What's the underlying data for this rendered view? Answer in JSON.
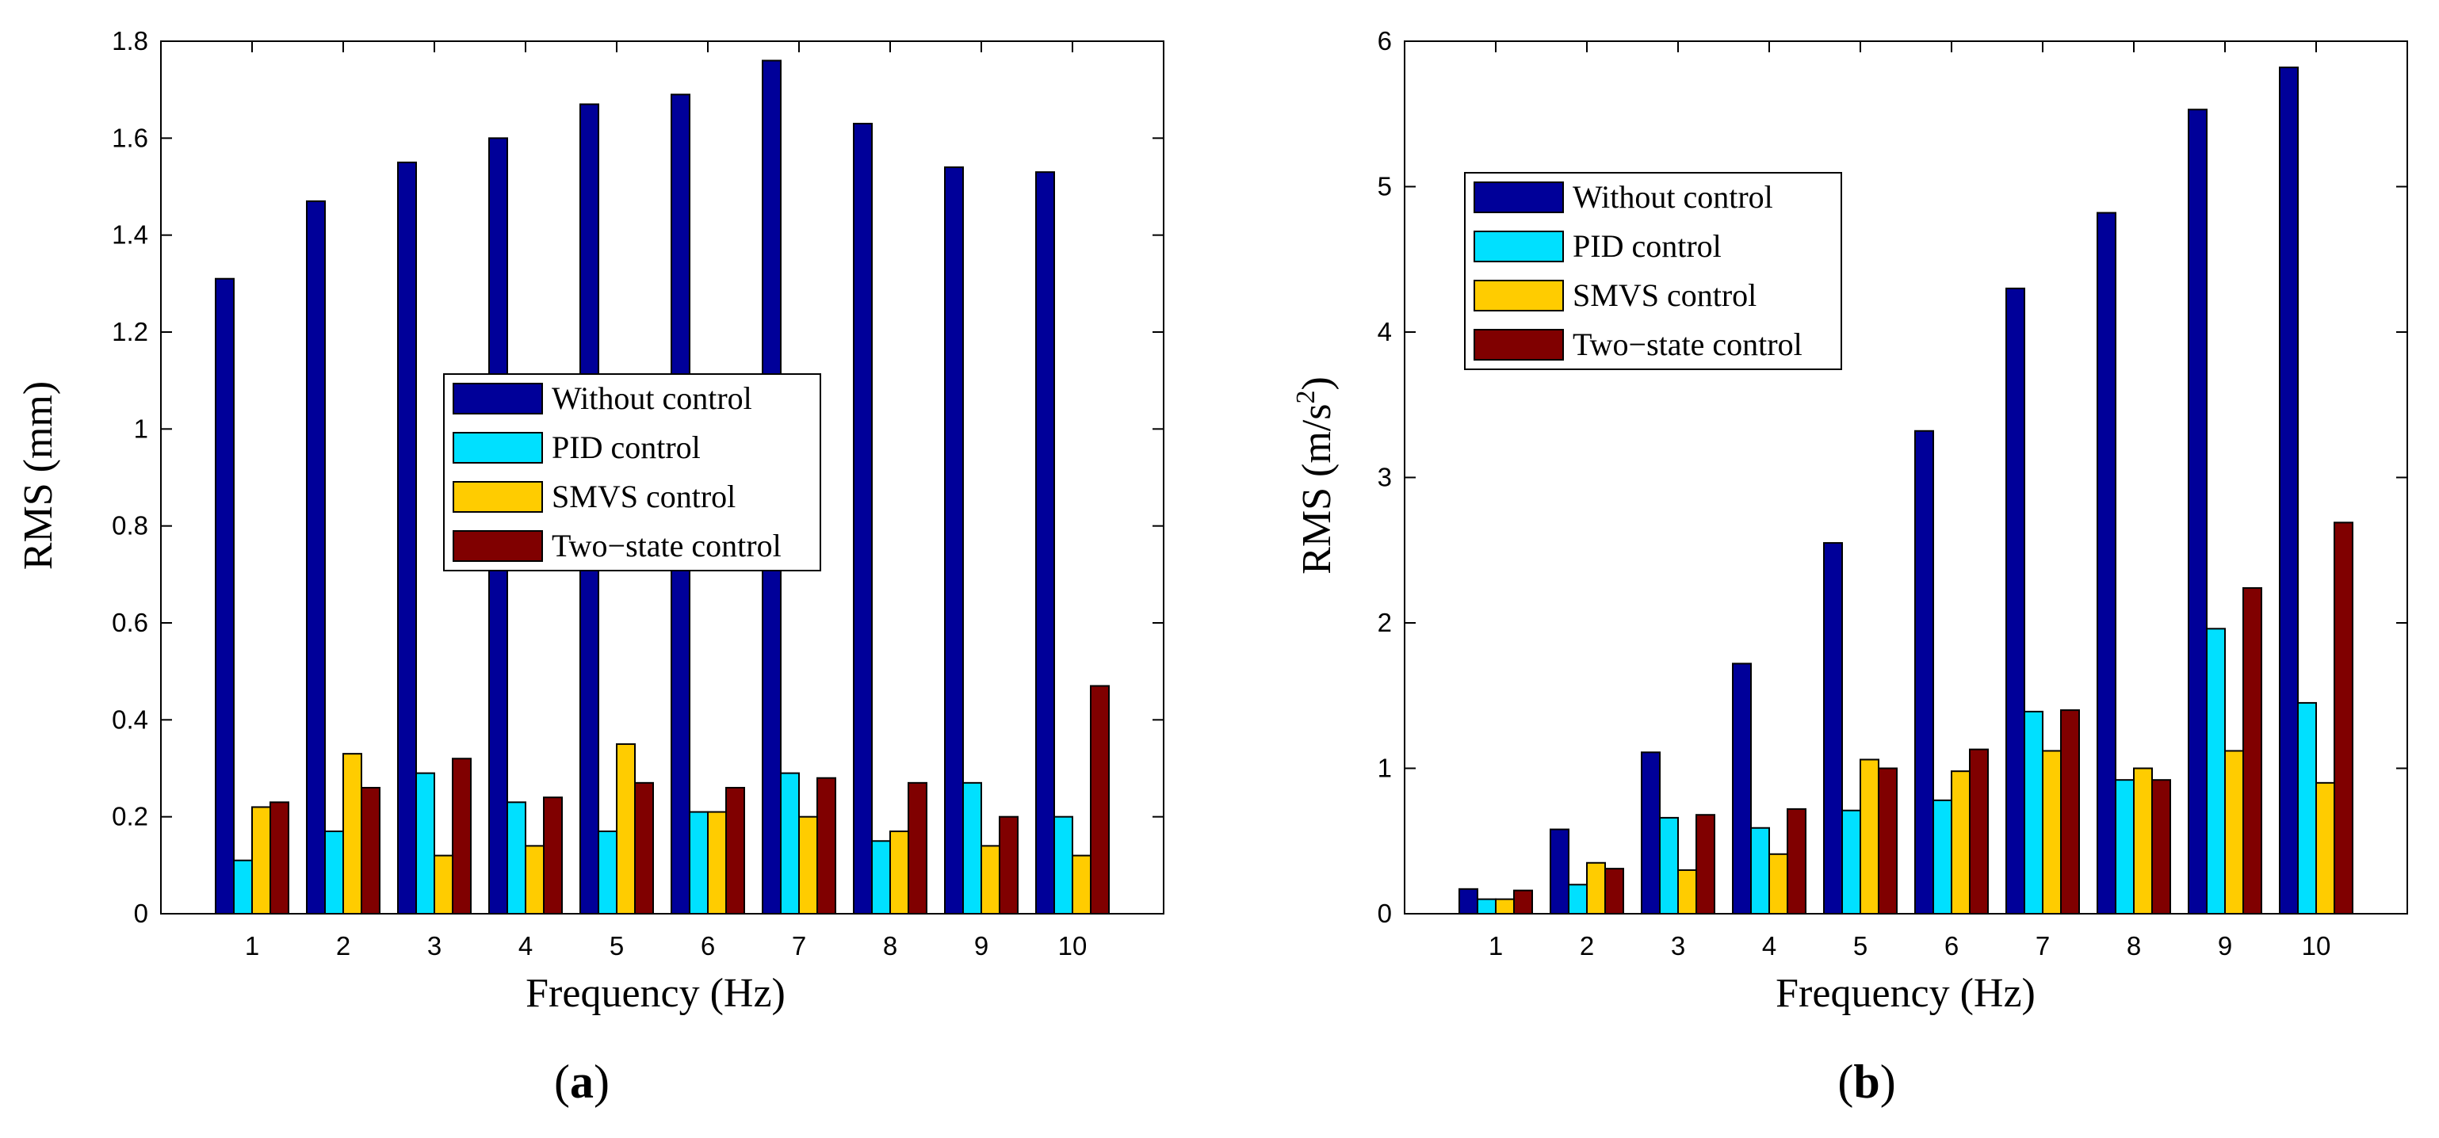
{
  "colors": {
    "Without control": "#000099",
    "PID control": "#00e0ff",
    "SMVS control": "#ffcc00",
    "Two-state control": "#800000"
  },
  "chart_data": [
    {
      "type": "bar",
      "panel": "a",
      "panel_label": "(a)",
      "panel_label_parts": [
        "(",
        "a",
        ")"
      ],
      "xlabel": "Frequency (Hz)",
      "ylabel": "RMS (mm)",
      "ylabel_parts": [
        "RMS (mm)",
        "",
        ""
      ],
      "categories": [
        "1",
        "2",
        "3",
        "4",
        "5",
        "6",
        "7",
        "8",
        "9",
        "10"
      ],
      "ylim": [
        0,
        1.8
      ],
      "yticks": [
        0,
        0.2,
        0.4,
        0.6,
        0.8,
        1,
        1.2,
        1.4,
        1.6,
        1.8
      ],
      "ytick_labels": [
        "0",
        "0.2",
        "0.4",
        "0.6",
        "0.8",
        "1",
        "1.2",
        "1.4",
        "1.6",
        "1.8"
      ],
      "legend_position": "center-right",
      "series": [
        {
          "name": "Without control",
          "legend_label": "Without control",
          "values": [
            1.31,
            1.47,
            1.55,
            1.6,
            1.67,
            1.69,
            1.76,
            1.63,
            1.54,
            1.53
          ]
        },
        {
          "name": "PID control",
          "legend_label": "PID control",
          "values": [
            0.11,
            0.17,
            0.29,
            0.23,
            0.17,
            0.21,
            0.29,
            0.15,
            0.27,
            0.2
          ]
        },
        {
          "name": "SMVS control",
          "legend_label": "SMVS control",
          "values": [
            0.22,
            0.33,
            0.12,
            0.14,
            0.35,
            0.21,
            0.2,
            0.17,
            0.14,
            0.12
          ]
        },
        {
          "name": "Two-state control",
          "legend_label": "Two−state control",
          "values": [
            0.23,
            0.26,
            0.32,
            0.24,
            0.27,
            0.26,
            0.28,
            0.27,
            0.2,
            0.47
          ]
        }
      ]
    },
    {
      "type": "bar",
      "panel": "b",
      "panel_label": "(b)",
      "panel_label_parts": [
        "(",
        "b",
        ")"
      ],
      "xlabel": "Frequency (Hz)",
      "ylabel": "RMS (m/s2)",
      "ylabel_parts": [
        "RMS (m/s",
        "2",
        ")"
      ],
      "categories": [
        "1",
        "2",
        "3",
        "4",
        "5",
        "6",
        "7",
        "8",
        "9",
        "10"
      ],
      "ylim": [
        0,
        6
      ],
      "yticks": [
        0,
        1,
        2,
        3,
        4,
        5,
        6
      ],
      "ytick_labels": [
        "0",
        "1",
        "2",
        "3",
        "4",
        "5",
        "6"
      ],
      "legend_position": "top-left",
      "series": [
        {
          "name": "Without control",
          "legend_label": "Without control",
          "values": [
            0.17,
            0.58,
            1.11,
            1.72,
            2.55,
            3.32,
            4.3,
            4.82,
            5.53,
            5.82
          ]
        },
        {
          "name": "PID control",
          "legend_label": "PID control",
          "values": [
            0.1,
            0.2,
            0.66,
            0.59,
            0.71,
            0.78,
            1.39,
            0.92,
            1.96,
            1.45
          ]
        },
        {
          "name": "SMVS control",
          "legend_label": "SMVS control",
          "values": [
            0.1,
            0.35,
            0.3,
            0.41,
            1.06,
            0.98,
            1.12,
            1.0,
            1.12,
            0.9
          ]
        },
        {
          "name": "Two-state control",
          "legend_label": "Two−state control",
          "values": [
            0.16,
            0.31,
            0.68,
            0.72,
            1.0,
            1.13,
            1.4,
            0.92,
            2.24,
            2.69
          ]
        }
      ]
    }
  ]
}
